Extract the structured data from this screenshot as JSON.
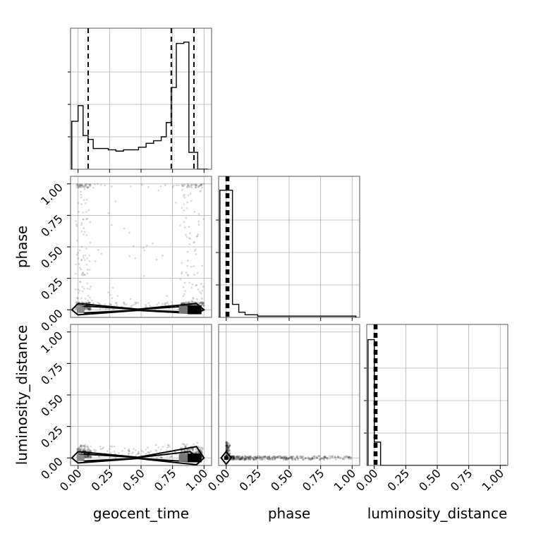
{
  "chart_data": {
    "type": "corner",
    "parameters": [
      "geocent_time",
      "phase",
      "luminosity_distance"
    ],
    "ticks": [
      "0.00",
      "0.25",
      "0.50",
      "0.75",
      "1.00"
    ],
    "tick_values": [
      0,
      0.25,
      0.5,
      0.75,
      1.0
    ],
    "axis_range": [
      -0.06,
      1.06
    ],
    "grid": true,
    "histograms": [
      {
        "parameter": "geocent_time",
        "bin_edges": [
          -0.05,
          0.0,
          0.04,
          0.08,
          0.12,
          0.18,
          0.24,
          0.3,
          0.36,
          0.42,
          0.48,
          0.54,
          0.6,
          0.66,
          0.7,
          0.74,
          0.78,
          0.84,
          0.88,
          0.95,
          1.03
        ],
        "counts": [
          0.37,
          0.49,
          0.26,
          0.23,
          0.16,
          0.16,
          0.15,
          0.14,
          0.15,
          0.15,
          0.17,
          0.2,
          0.22,
          0.25,
          0.36,
          0.63,
          0.97,
          0.98,
          0.13,
          0.0
        ],
        "quantiles": [
          0.08,
          0.74,
          0.92
        ]
      },
      {
        "parameter": "phase",
        "bin_edges": [
          -0.05,
          0.0,
          0.05,
          0.1,
          0.15,
          0.25,
          1.03
        ],
        "counts": [
          0.98,
          0.98,
          0.1,
          0.04,
          0.02,
          0.01
        ],
        "quantiles": [
          0.0,
          0.01,
          0.02
        ]
      },
      {
        "parameter": "luminosity_distance",
        "bin_edges": [
          -0.05,
          0.0,
          0.05,
          1.05
        ],
        "counts": [
          0.97,
          0.18,
          0.0
        ],
        "quantiles": [
          0.0,
          0.01,
          0.02
        ]
      }
    ],
    "scatter_panels": [
      {
        "x": "geocent_time",
        "y": "phase",
        "contours": [
          {
            "shape": "bowtie",
            "x_range": [
              -0.05,
              1.0
            ],
            "y_center": 0.0,
            "half_width": [
              0.05,
              0.005,
              0.05
            ]
          },
          {
            "shape": "bowtie",
            "x_range": [
              0.0,
              0.95
            ],
            "y_center": 0.0,
            "half_width": [
              0.03,
              0.003,
              0.03
            ]
          }
        ],
        "density_note": "scattered samples across full range, concentrated near phase 0"
      },
      {
        "x": "geocent_time",
        "y": "luminosity_distance",
        "contours": [
          {
            "shape": "bowtie",
            "x_range": [
              -0.05,
              1.0
            ],
            "y_center": 0.0,
            "half_width": [
              0.05,
              0.005,
              0.09
            ]
          },
          {
            "shape": "bowtie",
            "x_range": [
              0.0,
              0.95
            ],
            "y_center": 0.0,
            "half_width": [
              0.03,
              0.003,
              0.05
            ]
          }
        ]
      },
      {
        "x": "phase",
        "y": "luminosity_distance",
        "contours": [
          {
            "shape": "diamond",
            "x_center": 0.0,
            "y_center": 0.0,
            "half_width": 0.04,
            "half_height": 0.05
          }
        ]
      }
    ]
  }
}
